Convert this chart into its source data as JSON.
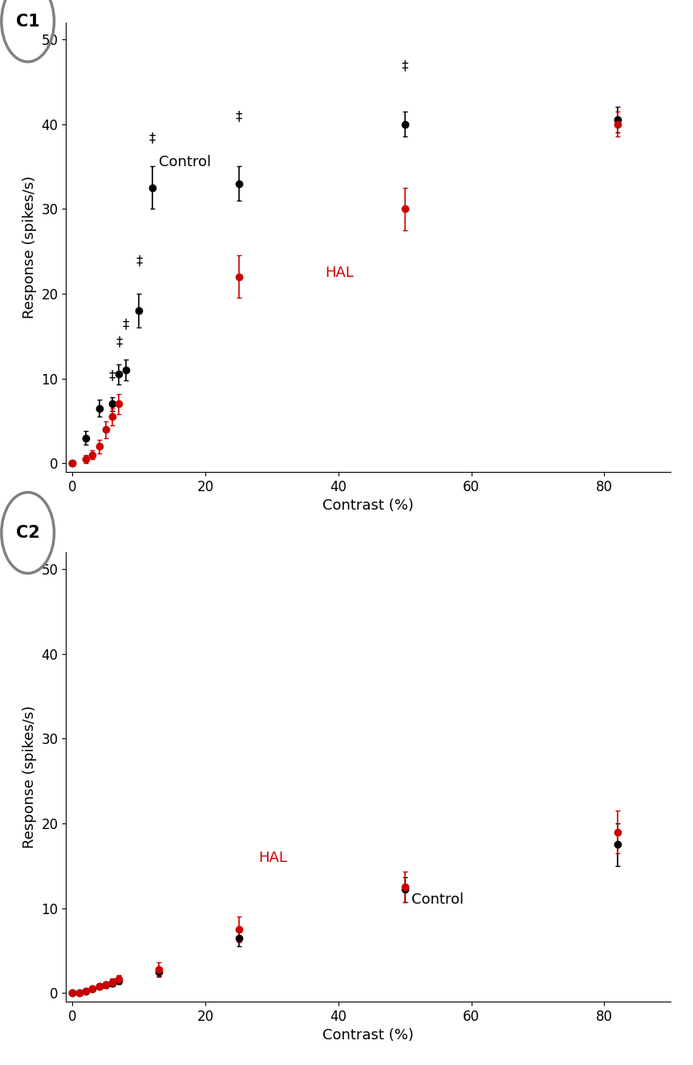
{
  "c1_control_x": [
    0,
    2,
    4,
    6,
    7,
    8,
    10,
    12,
    25,
    50,
    82
  ],
  "c1_control_y": [
    0,
    3.0,
    6.5,
    7.0,
    10.5,
    11.0,
    18.0,
    32.5,
    33.0,
    40.0,
    40.5
  ],
  "c1_control_yerr": [
    0,
    0.8,
    1.0,
    0.8,
    1.2,
    1.2,
    2.0,
    2.5,
    2.0,
    1.5,
    1.5
  ],
  "c1_hal_x": [
    0,
    2,
    3,
    4,
    5,
    6,
    7,
    25,
    50,
    82
  ],
  "c1_hal_y": [
    0,
    0.5,
    1.0,
    2.0,
    4.0,
    5.5,
    7.0,
    22.0,
    30.0,
    40.0
  ],
  "c1_hal_yerr": [
    0,
    0.5,
    0.5,
    0.8,
    1.0,
    1.0,
    1.2,
    2.5,
    2.5,
    1.5
  ],
  "c1_sig_x_y": [
    [
      6,
      9.5
    ],
    [
      7,
      13.5
    ],
    [
      8,
      15.5
    ],
    [
      10,
      23.0
    ],
    [
      12,
      37.5
    ],
    [
      25,
      40.0
    ],
    [
      50,
      46.0
    ]
  ],
  "c2_control_x": [
    0,
    1,
    2,
    3,
    4,
    5,
    6,
    7,
    13,
    25,
    50,
    82
  ],
  "c2_control_y": [
    0,
    0.0,
    0.2,
    0.5,
    0.8,
    1.0,
    1.2,
    1.5,
    2.5,
    6.5,
    12.2,
    17.5
  ],
  "c2_control_yerr": [
    0,
    0.1,
    0.2,
    0.3,
    0.3,
    0.3,
    0.4,
    0.4,
    0.6,
    1.0,
    1.5,
    2.5
  ],
  "c2_hal_x": [
    0,
    1,
    2,
    3,
    4,
    5,
    6,
    7,
    13,
    25,
    50,
    82
  ],
  "c2_hal_y": [
    0,
    0.0,
    0.2,
    0.5,
    0.8,
    1.0,
    1.3,
    1.6,
    2.8,
    7.5,
    12.5,
    19.0
  ],
  "c2_hal_yerr": [
    0,
    0.1,
    0.2,
    0.3,
    0.3,
    0.4,
    0.4,
    0.5,
    0.8,
    1.5,
    1.8,
    2.5
  ],
  "control_color": "#000000",
  "hal_color": "#cc0000",
  "ylabel": "Response (spikes/s)",
  "xlabel": "Contrast (%)",
  "ylim": [
    -1,
    52
  ],
  "xlim": [
    -1,
    90
  ],
  "yticks": [
    0,
    10,
    20,
    30,
    40,
    50
  ],
  "xticks": [
    0,
    20,
    40,
    60,
    80
  ],
  "label_c1": "C1",
  "label_c2": "C2",
  "circle_color": "#808080"
}
